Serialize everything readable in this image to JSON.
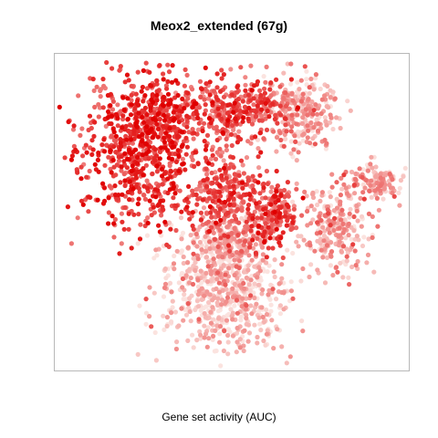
{
  "chart_data": {
    "type": "scatter",
    "title": "Meox2_extended (67g)",
    "xlabel": "Gene set activity (AUC)",
    "ylabel": "",
    "grid": false,
    "legend": "none",
    "colors": {
      "low": "#fbe3df",
      "high": "#e00000"
    },
    "clusters": [
      {
        "name": "upper-left",
        "cx": 0.22,
        "cy": 0.3,
        "rx": 0.16,
        "ry": 0.22,
        "auc": 0.72,
        "n": 700
      },
      {
        "name": "upper-left-top",
        "cx": 0.27,
        "cy": 0.17,
        "rx": 0.09,
        "ry": 0.08,
        "auc": 0.8,
        "n": 150
      },
      {
        "name": "top-center",
        "cx": 0.5,
        "cy": 0.15,
        "rx": 0.15,
        "ry": 0.09,
        "auc": 0.62,
        "n": 350
      },
      {
        "name": "top-right",
        "cx": 0.7,
        "cy": 0.16,
        "rx": 0.09,
        "ry": 0.1,
        "auc": 0.22,
        "n": 250
      },
      {
        "name": "center",
        "cx": 0.47,
        "cy": 0.43,
        "rx": 0.07,
        "ry": 0.12,
        "auc": 0.58,
        "n": 260
      },
      {
        "name": "center-right",
        "cx": 0.61,
        "cy": 0.5,
        "rx": 0.07,
        "ry": 0.09,
        "auc": 0.66,
        "n": 200
      },
      {
        "name": "right-mid",
        "cx": 0.8,
        "cy": 0.54,
        "rx": 0.08,
        "ry": 0.12,
        "auc": 0.22,
        "n": 250
      },
      {
        "name": "right-arm",
        "cx": 0.92,
        "cy": 0.39,
        "rx": 0.06,
        "ry": 0.05,
        "auc": 0.25,
        "n": 130
      },
      {
        "name": "bottom",
        "cx": 0.47,
        "cy": 0.75,
        "rx": 0.16,
        "ry": 0.17,
        "auc": 0.12,
        "n": 700
      },
      {
        "name": "lower-center",
        "cx": 0.49,
        "cy": 0.58,
        "rx": 0.08,
        "ry": 0.06,
        "auc": 0.25,
        "n": 150
      }
    ]
  }
}
